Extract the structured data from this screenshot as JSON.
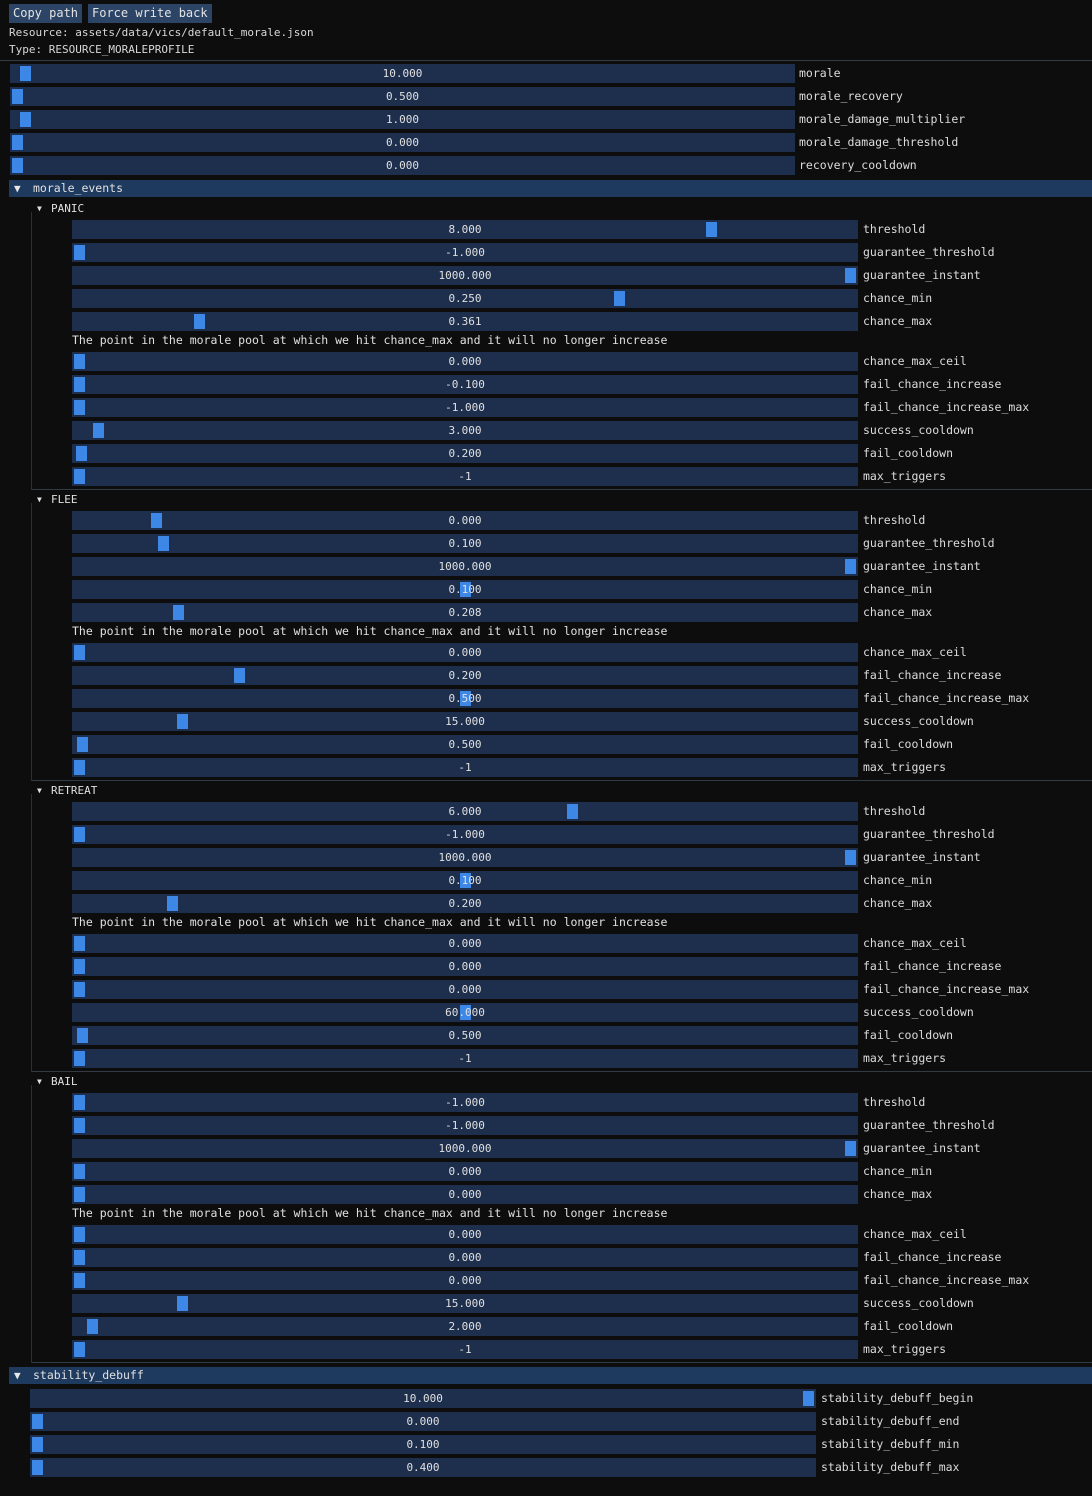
{
  "toolbar": {
    "copy_path": "Copy path",
    "force_write_back": "Force write back"
  },
  "resource": {
    "path_line": "Resource: assets/data/vics/default_morale.json",
    "type_line": "Type: RESOURCE_MORALEPROFILE"
  },
  "fields": [
    {
      "label": "morale",
      "value": "10.000",
      "fill": 0.01
    },
    {
      "label": "morale_recovery",
      "value": "0.500",
      "fill": 0.0
    },
    {
      "label": "morale_damage_multiplier",
      "value": "1.000",
      "fill": 0.01
    },
    {
      "label": "morale_damage_threshold",
      "value": "0.000",
      "fill": 0.0
    },
    {
      "label": "recovery_cooldown",
      "value": "0.000",
      "fill": 0.0
    }
  ],
  "morale_events": {
    "title": "morale_events",
    "tooltip": "The point in the morale pool at which we hit chance_max and it will no longer increase",
    "events": [
      {
        "name": "PANIC",
        "fields": [
          {
            "label": "threshold",
            "value": "8.000",
            "fill": 0.82
          },
          {
            "label": "guarantee_threshold",
            "value": "-1.000",
            "fill": 0.0
          },
          {
            "label": "guarantee_instant",
            "value": "1000.000",
            "fill": 1.0
          },
          {
            "label": "chance_min",
            "value": "0.250",
            "fill": 0.7
          },
          {
            "label": "chance_max",
            "value": "0.361",
            "fill": 0.155
          },
          {
            "label": "chance_max_ceil",
            "value": "0.000",
            "fill": 0.0
          },
          {
            "label": "fail_chance_increase",
            "value": "-0.100",
            "fill": 0.0
          },
          {
            "label": "fail_chance_increase_max",
            "value": "-1.000",
            "fill": 0.0
          },
          {
            "label": "success_cooldown",
            "value": "3.000",
            "fill": 0.025
          },
          {
            "label": "fail_cooldown",
            "value": "0.200",
            "fill": 0.002
          },
          {
            "label": "max_triggers",
            "value": "-1",
            "fill": 0.0
          }
        ]
      },
      {
        "name": "FLEE",
        "fields": [
          {
            "label": "threshold",
            "value": "0.000",
            "fill": 0.1
          },
          {
            "label": "guarantee_threshold",
            "value": "0.100",
            "fill": 0.109
          },
          {
            "label": "guarantee_instant",
            "value": "1000.000",
            "fill": 1.0
          },
          {
            "label": "chance_min",
            "value": "0.100",
            "fill": 0.5
          },
          {
            "label": "chance_max",
            "value": "0.208",
            "fill": 0.128
          },
          {
            "label": "chance_max_ceil",
            "value": "0.000",
            "fill": 0.0
          },
          {
            "label": "fail_chance_increase",
            "value": "0.200",
            "fill": 0.208
          },
          {
            "label": "fail_chance_increase_max",
            "value": "0.500",
            "fill": 0.5
          },
          {
            "label": "success_cooldown",
            "value": "15.000",
            "fill": 0.133
          },
          {
            "label": "fail_cooldown",
            "value": "0.500",
            "fill": 0.004
          },
          {
            "label": "max_triggers",
            "value": "-1",
            "fill": 0.0
          }
        ]
      },
      {
        "name": "RETREAT",
        "fields": [
          {
            "label": "threshold",
            "value": "6.000",
            "fill": 0.64
          },
          {
            "label": "guarantee_threshold",
            "value": "-1.000",
            "fill": 0.0
          },
          {
            "label": "guarantee_instant",
            "value": "1000.000",
            "fill": 1.0
          },
          {
            "label": "chance_min",
            "value": "0.100",
            "fill": 0.5
          },
          {
            "label": "chance_max",
            "value": "0.200",
            "fill": 0.12
          },
          {
            "label": "chance_max_ceil",
            "value": "0.000",
            "fill": 0.0
          },
          {
            "label": "fail_chance_increase",
            "value": "0.000",
            "fill": 0.0
          },
          {
            "label": "fail_chance_increase_max",
            "value": "0.000",
            "fill": 0.0
          },
          {
            "label": "success_cooldown",
            "value": "60.000",
            "fill": 0.5
          },
          {
            "label": "fail_cooldown",
            "value": "0.500",
            "fill": 0.004
          },
          {
            "label": "max_triggers",
            "value": "-1",
            "fill": 0.0
          }
        ]
      },
      {
        "name": "BAIL",
        "fields": [
          {
            "label": "threshold",
            "value": "-1.000",
            "fill": 0.0
          },
          {
            "label": "guarantee_threshold",
            "value": "-1.000",
            "fill": 0.0
          },
          {
            "label": "guarantee_instant",
            "value": "1000.000",
            "fill": 1.0
          },
          {
            "label": "chance_min",
            "value": "0.000",
            "fill": 0.0
          },
          {
            "label": "chance_max",
            "value": "0.000",
            "fill": 0.0
          },
          {
            "label": "chance_max_ceil",
            "value": "0.000",
            "fill": 0.0
          },
          {
            "label": "fail_chance_increase",
            "value": "0.000",
            "fill": 0.0
          },
          {
            "label": "fail_chance_increase_max",
            "value": "0.000",
            "fill": 0.0
          },
          {
            "label": "success_cooldown",
            "value": "15.000",
            "fill": 0.133
          },
          {
            "label": "fail_cooldown",
            "value": "2.000",
            "fill": 0.017
          },
          {
            "label": "max_triggers",
            "value": "-1",
            "fill": 0.0
          }
        ]
      }
    ]
  },
  "stability_debuff": {
    "title": "stability_debuff",
    "fields": [
      {
        "label": "stability_debuff_begin",
        "value": "10.000",
        "fill": 1.0
      },
      {
        "label": "stability_debuff_end",
        "value": "0.000",
        "fill": 0.0
      },
      {
        "label": "stability_debuff_min",
        "value": "0.100",
        "fill": 0.0
      },
      {
        "label": "stability_debuff_max",
        "value": "0.400",
        "fill": 0.0
      }
    ]
  },
  "colors": {
    "background": "#0d0d0d",
    "slider_bg": "#1d2f4d",
    "grab": "#3d87e6",
    "header": "#1e3a5f",
    "button": "#2c4466"
  },
  "icons": {
    "expanded": "triangle-down-icon"
  }
}
